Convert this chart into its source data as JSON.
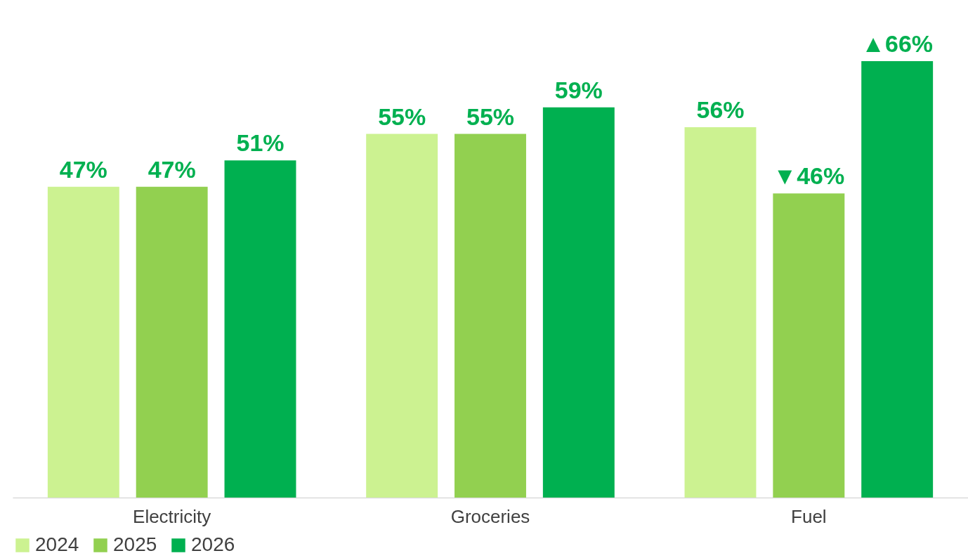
{
  "chart_data": {
    "type": "bar",
    "categories": [
      "Electricity",
      "Groceries",
      "Fuel"
    ],
    "series": [
      {
        "name": "2024",
        "color": "#ccf291",
        "values": [
          47,
          55,
          56
        ],
        "value_labels": [
          "47%",
          "55%",
          "56%"
        ]
      },
      {
        "name": "2025",
        "color": "#92d050",
        "values": [
          47,
          55,
          46
        ],
        "value_labels": [
          "47%",
          "55%",
          "▼46%"
        ]
      },
      {
        "name": "2026",
        "color": "#00b050",
        "values": [
          51,
          59,
          66
        ],
        "value_labels": [
          "51%",
          "59%",
          "▲66%"
        ]
      }
    ],
    "legend": "bottom"
  }
}
